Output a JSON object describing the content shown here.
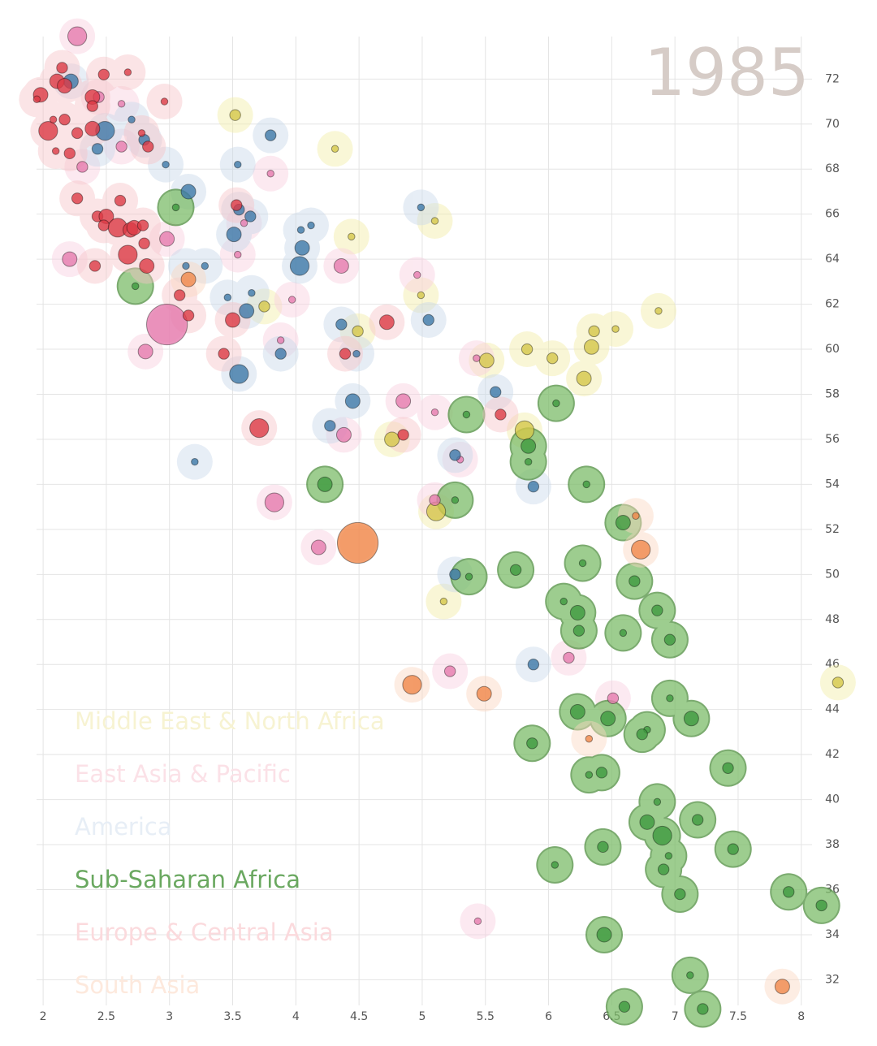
{
  "chart_data": {
    "type": "scatter",
    "title": "1985",
    "xlim": [
      1.8,
      8.4
    ],
    "ylim": [
      30.5,
      74.5
    ],
    "xticks": [
      2,
      2.5,
      3,
      3.5,
      4,
      4.5,
      5,
      5.5,
      6,
      6.5,
      7,
      7.5,
      8
    ],
    "yticks": [
      32,
      34,
      36,
      38,
      40,
      42,
      44,
      46,
      48,
      50,
      52,
      54,
      56,
      58,
      60,
      62,
      64,
      66,
      68,
      70,
      72
    ],
    "grid": true,
    "legend": "lower left",
    "series": [
      {
        "name": "Middle East & North Africa",
        "color": "#d4c74a",
        "blob": "#f2eda6",
        "legend_color": "#f7f3d2",
        "highlighted": false,
        "x": [
          3.52,
          4.31,
          4.44,
          5.1,
          4.99,
          3.75,
          4.49,
          6.36,
          6.53,
          6.87,
          5.51,
          5.83,
          6.03,
          6.34,
          6.28,
          5.81,
          4.76,
          5.11,
          5.17,
          8.29
        ],
        "values": [
          70.4,
          68.9,
          65.0,
          65.7,
          62.4,
          61.9,
          60.8,
          60.8,
          60.9,
          61.7,
          59.5,
          60.0,
          59.6,
          60.1,
          58.7,
          56.4,
          56.0,
          52.8,
          48.8,
          45.2
        ],
        "sizes": [
          5,
          2,
          2,
          2,
          2,
          5,
          5,
          5,
          2,
          2,
          9,
          5,
          5,
          9,
          9,
          15,
          9,
          15,
          2,
          5
        ]
      },
      {
        "name": "East Asia & Pacific",
        "color": "#e57aae",
        "blob": "#f9cfe0",
        "legend_color": "#fbe1e7",
        "highlighted": false,
        "x": [
          2.27,
          2.44,
          2.62,
          2.31,
          2.62,
          3.8,
          3.59,
          2.98,
          2.21,
          3.54,
          4.36,
          4.96,
          3.97,
          2.98,
          2.81,
          3.88,
          5.43,
          4.85,
          4.38,
          5.1,
          3.83,
          4.18,
          5.1,
          5.3,
          5.22,
          6.16,
          6.51,
          5.44
        ],
        "values": [
          73.9,
          71.2,
          70.9,
          68.1,
          69.0,
          67.8,
          65.6,
          64.9,
          64.0,
          64.2,
          63.7,
          63.3,
          62.2,
          61.1,
          59.9,
          60.4,
          59.6,
          57.7,
          56.2,
          57.2,
          53.2,
          51.2,
          53.3,
          55.1,
          45.7,
          46.3,
          44.5,
          34.6
        ],
        "sizes": [
          15,
          5,
          2,
          5,
          5,
          2,
          2,
          9,
          9,
          2,
          9,
          2,
          2,
          70,
          9,
          2,
          2,
          9,
          9,
          2,
          15,
          9,
          5,
          2,
          5,
          5,
          5,
          2
        ]
      },
      {
        "name": "America",
        "color": "#3d78a8",
        "blob": "#c9d9ea",
        "legend_color": "#e7eef6",
        "highlighted": false,
        "x": [
          2.22,
          2.49,
          2.43,
          2.7,
          2.8,
          2.97,
          3.8,
          3.54,
          3.15,
          3.55,
          3.64,
          3.51,
          4.12,
          4.04,
          4.05,
          4.03,
          3.28,
          3.13,
          4.99,
          3.65,
          3.46,
          3.61,
          4.36,
          5.05,
          3.88,
          4.48,
          3.55,
          4.45,
          5.58,
          4.27,
          5.26,
          3.2,
          5.88,
          5.26,
          5.88
        ],
        "values": [
          71.9,
          69.7,
          68.9,
          70.2,
          69.3,
          68.2,
          69.5,
          68.2,
          67.0,
          66.2,
          65.9,
          65.1,
          65.5,
          65.3,
          64.5,
          63.7,
          63.7,
          63.7,
          66.3,
          62.5,
          62.3,
          61.7,
          61.1,
          61.3,
          59.8,
          59.8,
          58.9,
          57.7,
          58.1,
          56.6,
          55.3,
          55.0,
          53.9,
          50.0,
          46.0
        ],
        "sizes": [
          9,
          15,
          5,
          2,
          5,
          2,
          5,
          2,
          9,
          5,
          5,
          9,
          2,
          2,
          9,
          15,
          2,
          2,
          2,
          2,
          2,
          9,
          5,
          5,
          5,
          2,
          15,
          9,
          5,
          5,
          5,
          2,
          5,
          5,
          5
        ]
      },
      {
        "name": "Sub-Saharan Africa",
        "color": "#3e9a3e",
        "blob": "#7dbd6a",
        "legend_color": "#6aa860",
        "highlighted": true,
        "x": [
          3.05,
          2.73,
          4.23,
          5.35,
          5.26,
          5.37,
          5.84,
          5.84,
          6.06,
          6.3,
          6.59,
          5.74,
          6.27,
          6.12,
          6.23,
          6.24,
          6.68,
          6.86,
          6.59,
          6.96,
          6.96,
          6.23,
          6.47,
          6.78,
          6.74,
          7.13,
          5.87,
          6.42,
          6.32,
          7.42,
          6.86,
          6.78,
          6.9,
          7.18,
          6.43,
          7.46,
          6.95,
          6.05,
          6.91,
          7.04,
          7.9,
          8.16,
          6.44,
          7.12,
          6.6,
          7.22
        ],
        "values": [
          66.3,
          62.8,
          54.0,
          57.1,
          53.3,
          49.9,
          55.7,
          55.0,
          57.6,
          54.0,
          52.3,
          50.2,
          50.5,
          48.8,
          48.3,
          47.5,
          49.7,
          48.4,
          47.4,
          47.1,
          44.5,
          43.9,
          43.6,
          43.1,
          42.9,
          43.6,
          42.5,
          41.2,
          41.1,
          41.4,
          39.9,
          39.0,
          38.4,
          39.1,
          37.9,
          37.8,
          37.5,
          37.1,
          36.9,
          35.8,
          35.9,
          35.3,
          34.0,
          32.2,
          30.8,
          30.7
        ],
        "sizes": [
          2,
          2,
          9,
          2,
          2,
          2,
          9,
          2,
          2,
          2,
          9,
          5,
          2,
          2,
          9,
          5,
          5,
          5,
          2,
          5,
          2,
          9,
          9,
          2,
          5,
          9,
          5,
          5,
          2,
          5,
          2,
          9,
          15,
          5,
          5,
          5,
          2,
          2,
          5,
          5,
          5,
          5,
          9,
          2,
          5,
          5
        ]
      },
      {
        "name": "Europe & Central Asia",
        "color": "#dc3a45",
        "blob": "#f7c4c8",
        "legend_color": "#fbdadd",
        "highlighted": false,
        "x": [
          2.15,
          2.11,
          1.98,
          1.95,
          2.39,
          2.48,
          2.67,
          2.17,
          2.39,
          2.04,
          2.17,
          2.27,
          2.39,
          2.08,
          2.21,
          2.1,
          2.83,
          2.78,
          2.96,
          2.27,
          2.61,
          2.43,
          2.5,
          2.48,
          2.59,
          2.69,
          2.72,
          2.79,
          2.8,
          2.67,
          2.82,
          2.41,
          3.08,
          3.15,
          3.53,
          3.5,
          3.43,
          4.39,
          4.72,
          3.71,
          4.85,
          5.62
        ],
        "values": [
          72.5,
          71.9,
          71.3,
          71.1,
          71.2,
          72.2,
          72.3,
          71.7,
          70.8,
          69.7,
          70.2,
          69.6,
          69.8,
          70.2,
          68.7,
          68.8,
          69.0,
          69.6,
          71.0,
          66.7,
          66.6,
          65.9,
          65.9,
          65.5,
          65.4,
          65.3,
          65.4,
          65.5,
          64.7,
          64.2,
          63.7,
          63.7,
          62.4,
          61.5,
          66.4,
          61.3,
          59.8,
          59.8,
          61.2,
          56.5,
          56.2,
          57.1
        ],
        "sizes": [
          5,
          9,
          9,
          2,
          9,
          5,
          2,
          9,
          5,
          15,
          5,
          5,
          9,
          2,
          5,
          2,
          5,
          2,
          2,
          5,
          5,
          5,
          9,
          5,
          15,
          9,
          9,
          5,
          5,
          15,
          9,
          5,
          5,
          5,
          5,
          9,
          5,
          5,
          9,
          15,
          5,
          5
        ]
      },
      {
        "name": "South Asia",
        "color": "#f0874a",
        "blob": "#fbd6c0",
        "legend_color": "#fde9dd",
        "highlighted": false,
        "x": [
          3.15,
          4.49,
          6.73,
          6.69,
          4.92,
          5.49,
          7.85,
          6.32
        ],
        "values": [
          63.1,
          51.4,
          51.1,
          52.6,
          45.1,
          44.7,
          31.7,
          42.7
        ],
        "sizes": [
          9,
          70,
          15,
          2,
          15,
          9,
          9,
          2
        ]
      }
    ]
  }
}
